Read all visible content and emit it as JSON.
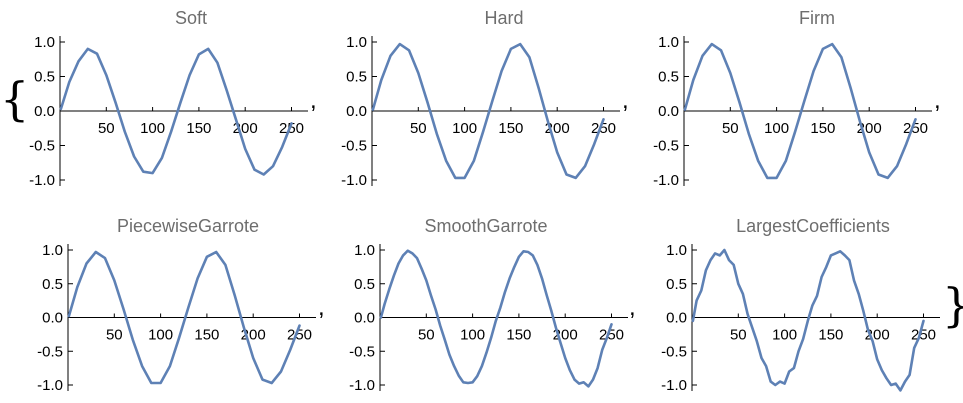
{
  "open_brace": "{",
  "close_brace": "}",
  "separator": ",",
  "chart_data": [
    {
      "type": "line",
      "title": "Soft",
      "xlabel": "",
      "ylabel": "",
      "xlim": [
        0,
        256
      ],
      "ylim": [
        -1.0,
        1.0
      ],
      "x_ticks": [
        "50",
        "100",
        "150",
        "200",
        "250"
      ],
      "y_ticks": [
        "1.0",
        "0.5",
        "0.0",
        "-0.5",
        "-1.0"
      ],
      "series": [
        {
          "x": [
            1,
            10,
            20,
            30,
            40,
            50,
            60,
            70,
            80,
            90,
            100,
            110,
            120,
            130,
            140,
            150,
            160,
            170,
            180,
            190,
            200,
            210,
            220,
            230,
            240,
            250
          ],
          "values": [
            0.03,
            0.42,
            0.72,
            0.9,
            0.83,
            0.52,
            0.12,
            -0.3,
            -0.66,
            -0.88,
            -0.9,
            -0.68,
            -0.3,
            0.12,
            0.52,
            0.82,
            0.9,
            0.7,
            0.3,
            -0.12,
            -0.55,
            -0.85,
            -0.92,
            -0.8,
            -0.52,
            -0.18
          ]
        }
      ]
    },
    {
      "type": "line",
      "title": "Hard",
      "xlabel": "",
      "ylabel": "",
      "xlim": [
        0,
        256
      ],
      "ylim": [
        -1.0,
        1.0
      ],
      "x_ticks": [
        "50",
        "100",
        "150",
        "200",
        "250"
      ],
      "y_ticks": [
        "1.0",
        "0.5",
        "0.0",
        "-0.5",
        "-1.0"
      ],
      "series": [
        {
          "x": [
            1,
            10,
            20,
            30,
            40,
            50,
            60,
            70,
            80,
            90,
            100,
            110,
            120,
            130,
            140,
            150,
            160,
            170,
            180,
            190,
            200,
            210,
            220,
            230,
            240,
            250
          ],
          "values": [
            0.02,
            0.45,
            0.8,
            0.97,
            0.88,
            0.55,
            0.12,
            -0.33,
            -0.72,
            -0.97,
            -0.97,
            -0.72,
            -0.3,
            0.15,
            0.58,
            0.9,
            0.97,
            0.78,
            0.33,
            -0.15,
            -0.6,
            -0.92,
            -0.97,
            -0.8,
            -0.48,
            -0.12
          ]
        }
      ]
    },
    {
      "type": "line",
      "title": "Firm",
      "xlabel": "",
      "ylabel": "",
      "xlim": [
        0,
        256
      ],
      "ylim": [
        -1.0,
        1.0
      ],
      "x_ticks": [
        "50",
        "100",
        "150",
        "200",
        "250"
      ],
      "y_ticks": [
        "1.0",
        "0.5",
        "0.0",
        "-0.5",
        "-1.0"
      ],
      "series": [
        {
          "x": [
            1,
            10,
            20,
            30,
            40,
            50,
            60,
            70,
            80,
            90,
            100,
            110,
            120,
            130,
            140,
            150,
            160,
            170,
            180,
            190,
            200,
            210,
            220,
            230,
            240,
            250
          ],
          "values": [
            0.02,
            0.45,
            0.8,
            0.97,
            0.88,
            0.55,
            0.12,
            -0.33,
            -0.72,
            -0.97,
            -0.97,
            -0.72,
            -0.3,
            0.15,
            0.58,
            0.9,
            0.97,
            0.78,
            0.33,
            -0.15,
            -0.6,
            -0.92,
            -0.97,
            -0.8,
            -0.48,
            -0.12
          ]
        }
      ]
    },
    {
      "type": "line",
      "title": "PiecewiseGarrote",
      "xlabel": "",
      "ylabel": "",
      "xlim": [
        0,
        256
      ],
      "ylim": [
        -1.0,
        1.0
      ],
      "x_ticks": [
        "50",
        "100",
        "150",
        "200",
        "250"
      ],
      "y_ticks": [
        "1.0",
        "0.5",
        "0.0",
        "-0.5",
        "-1.0"
      ],
      "series": [
        {
          "x": [
            1,
            10,
            20,
            30,
            40,
            50,
            60,
            70,
            80,
            90,
            100,
            110,
            120,
            130,
            140,
            150,
            160,
            170,
            180,
            190,
            200,
            210,
            220,
            230,
            240,
            250
          ],
          "values": [
            0.02,
            0.45,
            0.8,
            0.97,
            0.88,
            0.55,
            0.12,
            -0.33,
            -0.72,
            -0.97,
            -0.97,
            -0.72,
            -0.3,
            0.15,
            0.58,
            0.9,
            0.97,
            0.78,
            0.33,
            -0.15,
            -0.6,
            -0.92,
            -0.97,
            -0.8,
            -0.48,
            -0.12
          ]
        }
      ]
    },
    {
      "type": "line",
      "title": "SmoothGarrote",
      "xlabel": "",
      "ylabel": "",
      "xlim": [
        0,
        256
      ],
      "ylim": [
        -1.0,
        1.0
      ],
      "x_ticks": [
        "50",
        "100",
        "150",
        "200",
        "250"
      ],
      "y_ticks": [
        "1.0",
        "0.5",
        "0.0",
        "-0.5",
        "-1.0"
      ],
      "series": [
        {
          "x": [
            1,
            5,
            10,
            15,
            20,
            25,
            30,
            35,
            40,
            45,
            50,
            55,
            60,
            65,
            70,
            75,
            80,
            85,
            90,
            95,
            100,
            105,
            110,
            115,
            120,
            125,
            130,
            135,
            140,
            145,
            150,
            155,
            160,
            165,
            170,
            175,
            180,
            185,
            190,
            195,
            200,
            205,
            210,
            215,
            220,
            225,
            230,
            235,
            240,
            245,
            250
          ],
          "values": [
            0.0,
            0.2,
            0.42,
            0.62,
            0.8,
            0.92,
            0.99,
            0.95,
            0.88,
            0.72,
            0.55,
            0.33,
            0.12,
            -0.12,
            -0.33,
            -0.55,
            -0.72,
            -0.86,
            -0.96,
            -0.97,
            -0.96,
            -0.87,
            -0.72,
            -0.52,
            -0.3,
            -0.05,
            0.15,
            0.38,
            0.58,
            0.75,
            0.9,
            0.98,
            0.97,
            0.92,
            0.78,
            0.58,
            0.33,
            0.1,
            -0.15,
            -0.38,
            -0.6,
            -0.78,
            -0.92,
            -0.98,
            -0.96,
            -1.02,
            -0.92,
            -0.75,
            -0.48,
            -0.3,
            -0.1
          ]
        }
      ]
    },
    {
      "type": "line",
      "title": "LargestCoefficients",
      "xlabel": "",
      "ylabel": "",
      "xlim": [
        0,
        256
      ],
      "ylim": [
        -1.0,
        1.0
      ],
      "x_ticks": [
        "50",
        "100",
        "150",
        "200",
        "250"
      ],
      "y_ticks": [
        "1.0",
        "0.5",
        "0.0",
        "-0.5",
        "-1.0"
      ],
      "series": [
        {
          "x": [
            1,
            5,
            10,
            15,
            20,
            25,
            30,
            35,
            40,
            45,
            50,
            55,
            60,
            65,
            70,
            75,
            80,
            85,
            90,
            95,
            100,
            105,
            110,
            115,
            120,
            125,
            130,
            135,
            140,
            145,
            150,
            155,
            160,
            165,
            170,
            175,
            180,
            185,
            190,
            195,
            200,
            205,
            210,
            215,
            220,
            225,
            230,
            235,
            240,
            245,
            250
          ],
          "values": [
            -0.05,
            0.25,
            0.4,
            0.7,
            0.85,
            0.95,
            0.92,
            1.0,
            0.85,
            0.78,
            0.5,
            0.35,
            0.05,
            -0.15,
            -0.35,
            -0.6,
            -0.72,
            -0.95,
            -1.0,
            -0.95,
            -0.98,
            -0.8,
            -0.75,
            -0.5,
            -0.32,
            -0.05,
            0.18,
            0.32,
            0.6,
            0.75,
            0.92,
            0.95,
            0.98,
            0.92,
            0.85,
            0.55,
            0.35,
            0.1,
            -0.18,
            -0.35,
            -0.62,
            -0.78,
            -0.9,
            -1.0,
            -0.98,
            -1.08,
            -0.95,
            -0.85,
            -0.45,
            -0.3,
            -0.05
          ]
        }
      ]
    }
  ]
}
